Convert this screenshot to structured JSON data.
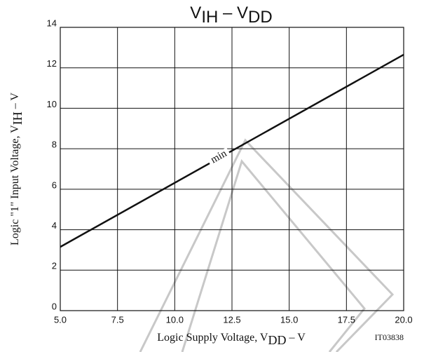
{
  "chart_data": {
    "type": "line",
    "title": [
      "V",
      "IH",
      " – ",
      "V",
      "DD"
    ],
    "x_label": [
      "Logic Supply Voltage, V",
      "DD",
      " – V"
    ],
    "y_label": [
      "Logic \"1\" Input Voltage, V",
      "IH",
      " – V"
    ],
    "annotation": "min",
    "code": "IT03838",
    "x": [
      5,
      20
    ],
    "series": [
      {
        "name": "min",
        "color": "#111111",
        "values": [
          3.15,
          12.65
        ]
      }
    ],
    "xlim": [
      5,
      20
    ],
    "xticks": [
      {
        "value": 5,
        "label": "5.0"
      },
      {
        "value": 7.5,
        "label": "7.5"
      },
      {
        "value": 10,
        "label": "10.0"
      },
      {
        "value": 12.5,
        "label": "12.5"
      },
      {
        "value": 15,
        "label": "15.0"
      },
      {
        "value": 17.5,
        "label": "17.5"
      },
      {
        "value": 20,
        "label": "20.0"
      }
    ],
    "ylim": [
      0,
      14
    ],
    "yticks": [
      0,
      2,
      4,
      6,
      8,
      10,
      12,
      14
    ],
    "grid": true
  }
}
